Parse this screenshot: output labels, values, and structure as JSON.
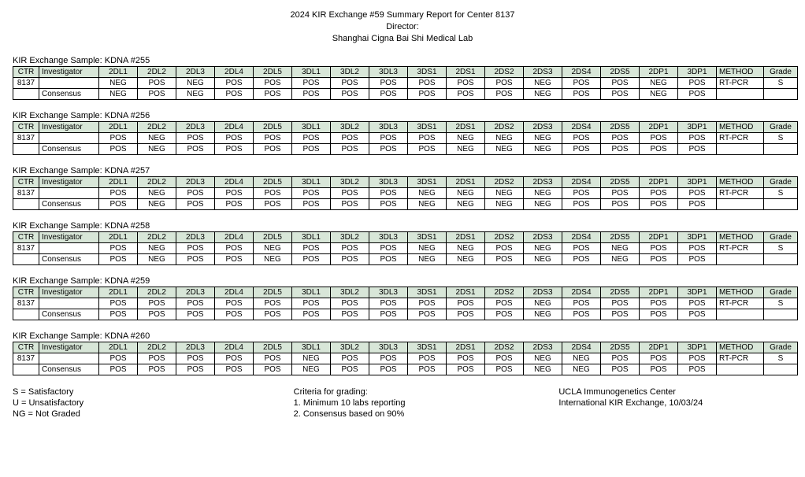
{
  "title": {
    "line1": "2024 KIR Exchange #59 Summary Report for Center 8137",
    "line2": "Director:",
    "line3": "Shanghai Cigna Bai Shi Medical Lab"
  },
  "locusHeaders": [
    "2DL1",
    "2DL2",
    "2DL3",
    "2DL4",
    "2DL5",
    "3DL1",
    "3DL2",
    "3DL3",
    "3DS1",
    "2DS1",
    "2DS2",
    "2DS3",
    "2DS4",
    "2DS5",
    "2DP1",
    "3DP1"
  ],
  "colLabels": {
    "ctr": "CTR",
    "investigator": "Investigator",
    "method": "METHOD",
    "grade": "Grade"
  },
  "centerId": "8137",
  "samples": [
    {
      "label": "KIR Exchange Sample: KDNA #255",
      "center": {
        "method": "RT-PCR",
        "grade": "S",
        "vals": [
          "NEG",
          "POS",
          "NEG",
          "POS",
          "POS",
          "POS",
          "POS",
          "POS",
          "POS",
          "POS",
          "POS",
          "NEG",
          "POS",
          "POS",
          "NEG",
          "POS"
        ]
      },
      "consensus": {
        "vals": [
          "NEG",
          "POS",
          "NEG",
          "POS",
          "POS",
          "POS",
          "POS",
          "POS",
          "POS",
          "POS",
          "POS",
          "NEG",
          "POS",
          "POS",
          "NEG",
          "POS"
        ]
      }
    },
    {
      "label": "KIR Exchange Sample: KDNA #256",
      "center": {
        "method": "RT-PCR",
        "grade": "S",
        "vals": [
          "POS",
          "NEG",
          "POS",
          "POS",
          "POS",
          "POS",
          "POS",
          "POS",
          "POS",
          "NEG",
          "NEG",
          "NEG",
          "POS",
          "POS",
          "POS",
          "POS"
        ]
      },
      "consensus": {
        "vals": [
          "POS",
          "NEG",
          "POS",
          "POS",
          "POS",
          "POS",
          "POS",
          "POS",
          "POS",
          "NEG",
          "NEG",
          "NEG",
          "POS",
          "POS",
          "POS",
          "POS"
        ]
      }
    },
    {
      "label": "KIR Exchange Sample: KDNA #257",
      "center": {
        "method": "RT-PCR",
        "grade": "S",
        "vals": [
          "POS",
          "NEG",
          "POS",
          "POS",
          "POS",
          "POS",
          "POS",
          "POS",
          "NEG",
          "NEG",
          "NEG",
          "NEG",
          "POS",
          "POS",
          "POS",
          "POS"
        ]
      },
      "consensus": {
        "vals": [
          "POS",
          "NEG",
          "POS",
          "POS",
          "POS",
          "POS",
          "POS",
          "POS",
          "NEG",
          "NEG",
          "NEG",
          "NEG",
          "POS",
          "POS",
          "POS",
          "POS"
        ]
      }
    },
    {
      "label": "KIR Exchange Sample: KDNA #258",
      "center": {
        "method": "RT-PCR",
        "grade": "S",
        "vals": [
          "POS",
          "NEG",
          "POS",
          "POS",
          "NEG",
          "POS",
          "POS",
          "POS",
          "NEG",
          "NEG",
          "POS",
          "NEG",
          "POS",
          "NEG",
          "POS",
          "POS"
        ]
      },
      "consensus": {
        "vals": [
          "POS",
          "NEG",
          "POS",
          "POS",
          "NEG",
          "POS",
          "POS",
          "POS",
          "NEG",
          "NEG",
          "POS",
          "NEG",
          "POS",
          "NEG",
          "POS",
          "POS"
        ]
      }
    },
    {
      "label": "KIR Exchange Sample: KDNA #259",
      "center": {
        "method": "RT-PCR",
        "grade": "S",
        "vals": [
          "POS",
          "POS",
          "POS",
          "POS",
          "POS",
          "POS",
          "POS",
          "POS",
          "POS",
          "POS",
          "POS",
          "NEG",
          "POS",
          "POS",
          "POS",
          "POS"
        ]
      },
      "consensus": {
        "vals": [
          "POS",
          "POS",
          "POS",
          "POS",
          "POS",
          "POS",
          "POS",
          "POS",
          "POS",
          "POS",
          "POS",
          "NEG",
          "POS",
          "POS",
          "POS",
          "POS"
        ]
      }
    },
    {
      "label": "KIR Exchange Sample: KDNA #260",
      "center": {
        "method": "RT-PCR",
        "grade": "S",
        "vals": [
          "POS",
          "POS",
          "POS",
          "POS",
          "POS",
          "NEG",
          "POS",
          "POS",
          "POS",
          "POS",
          "POS",
          "NEG",
          "NEG",
          "POS",
          "POS",
          "POS"
        ]
      },
      "consensus": {
        "vals": [
          "POS",
          "POS",
          "POS",
          "POS",
          "POS",
          "NEG",
          "POS",
          "POS",
          "POS",
          "POS",
          "POS",
          "NEG",
          "NEG",
          "POS",
          "POS",
          "POS"
        ]
      }
    }
  ],
  "consensusLabel": "Consensus",
  "footer": {
    "left": [
      "S = Satisfactory",
      "U = Unsatisfactory",
      "NG = Not Graded"
    ],
    "mid": [
      "Criteria for grading:",
      "1. Minimum 10 labs reporting",
      "2. Consensus based on 90%"
    ],
    "right": [
      "UCLA Immunogenetics Center",
      "International KIR Exchange, 10/03/24"
    ]
  }
}
